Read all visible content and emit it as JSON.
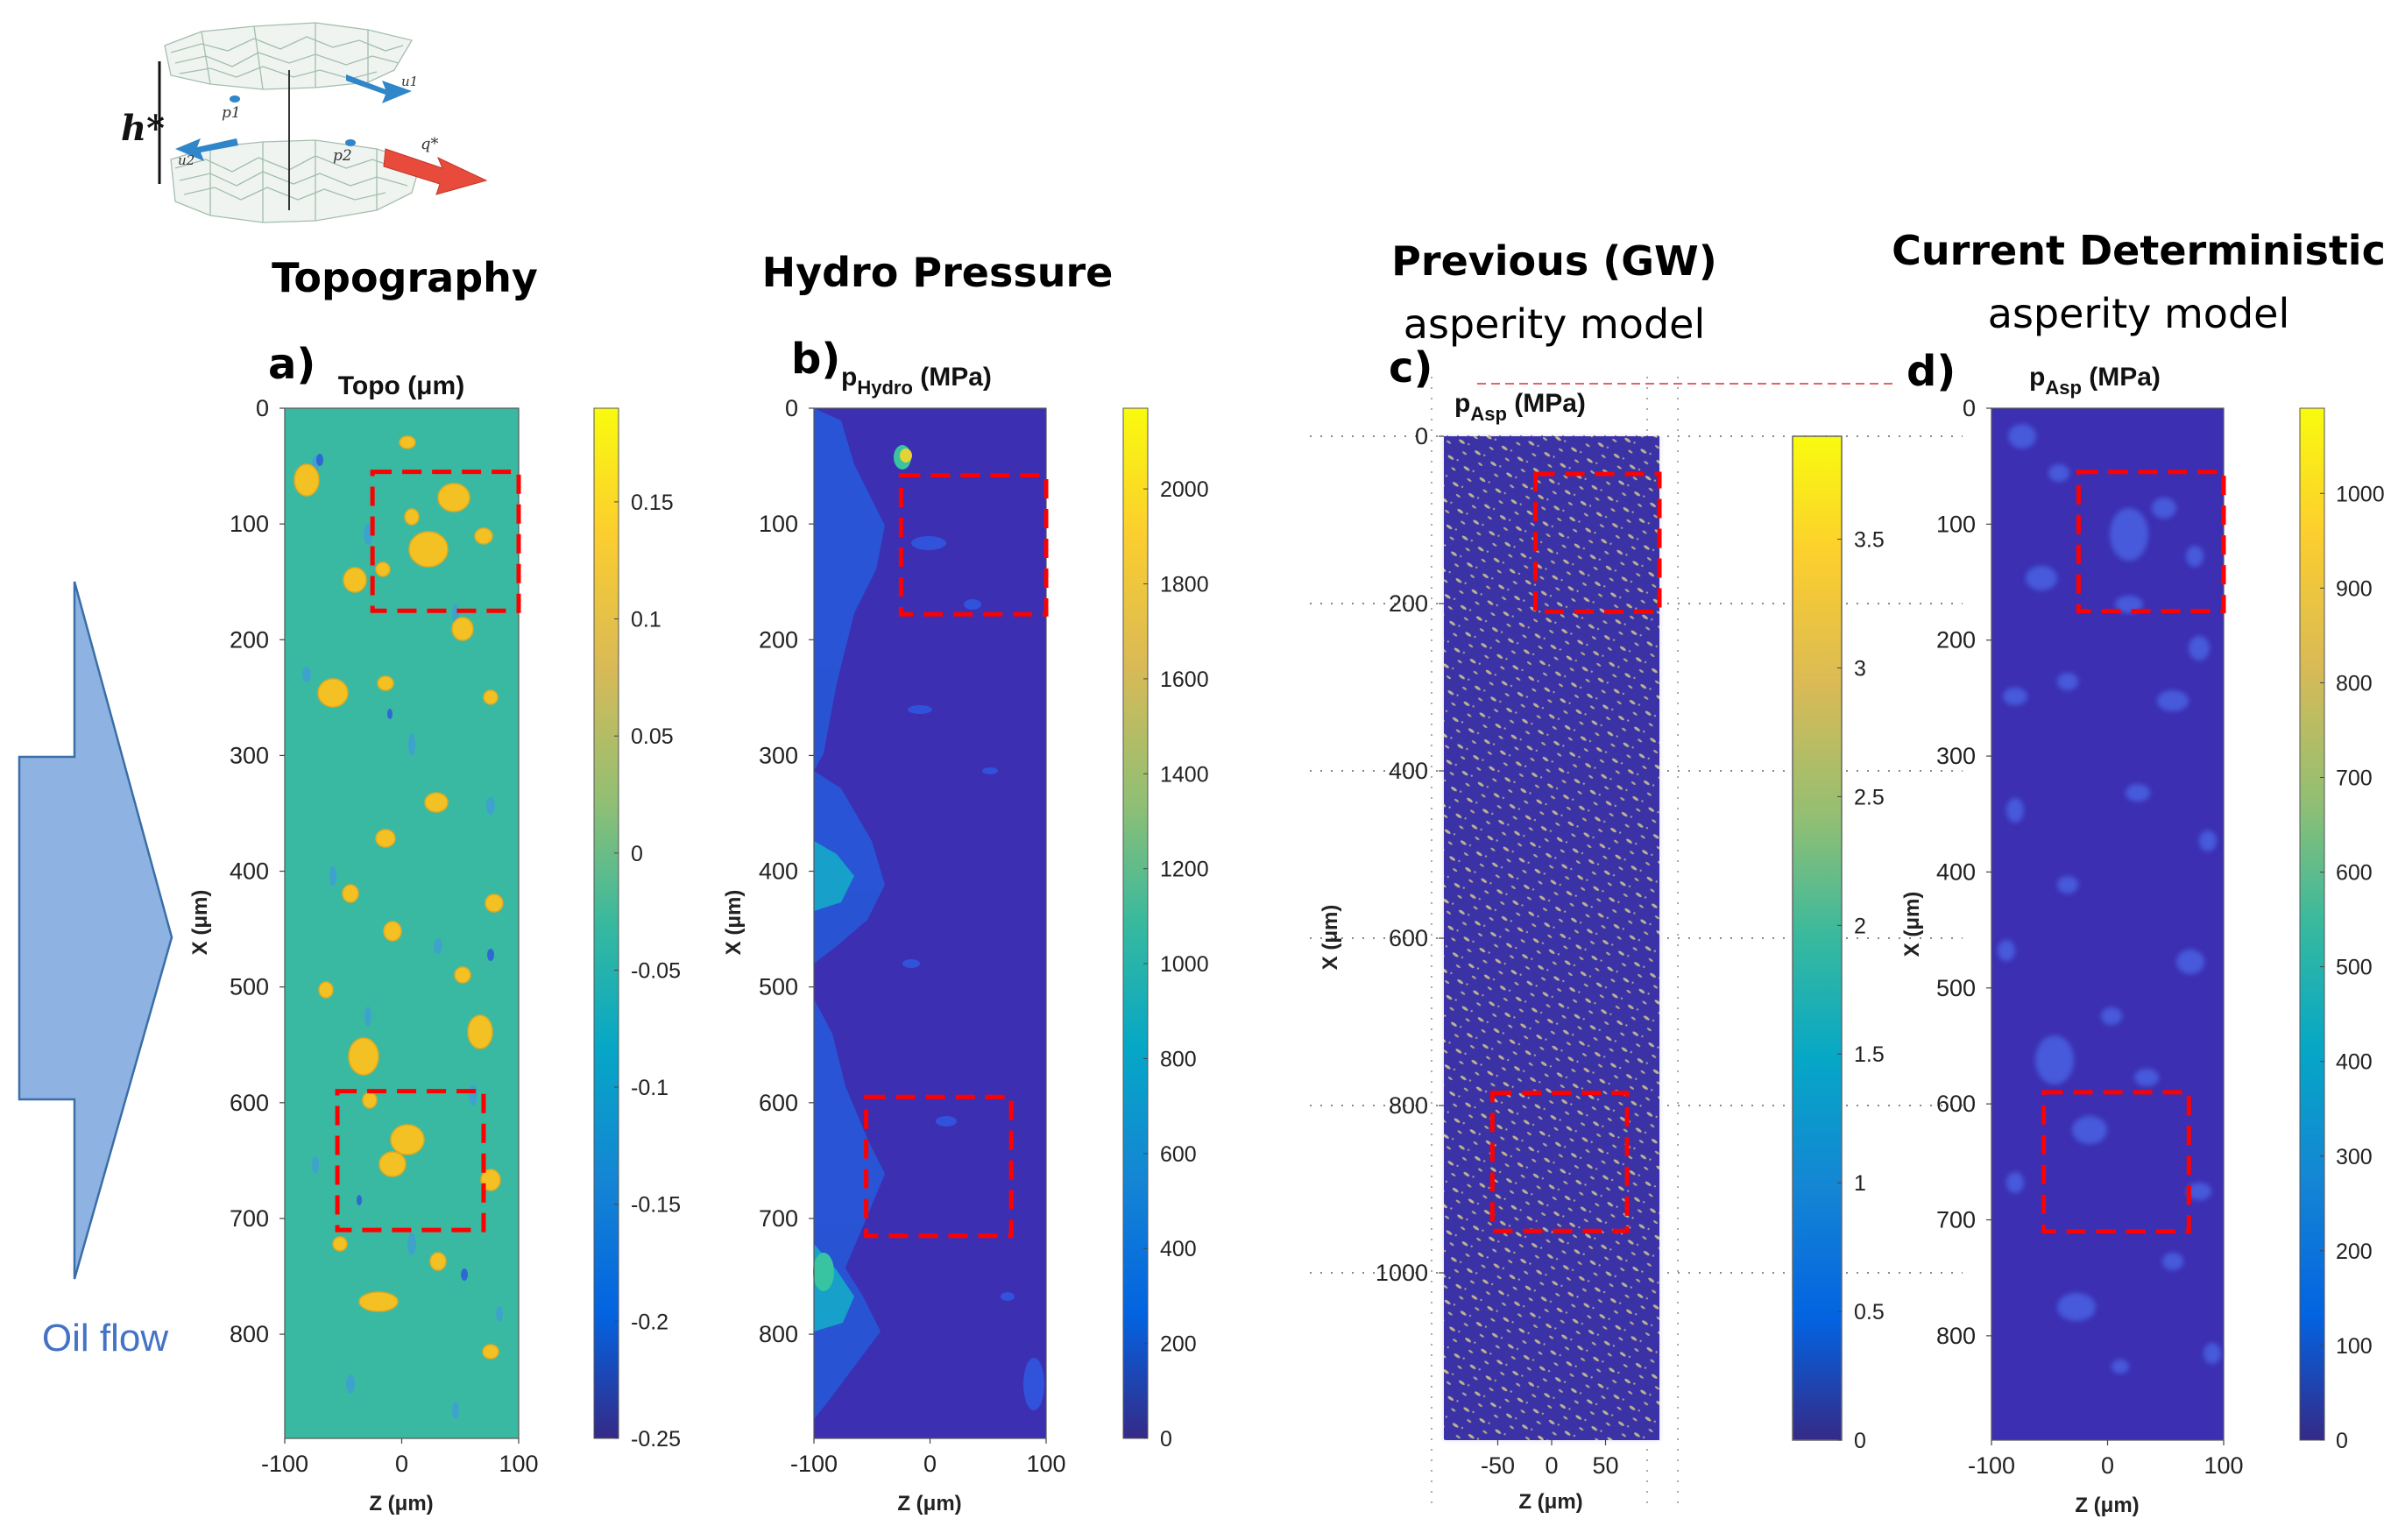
{
  "figure": {
    "arrow_label": "Oil flow",
    "arrow_color": "#7fa7db",
    "box_color": "#ff0000",
    "schematic_labels": [
      "h*",
      "p1",
      "p2",
      "u1",
      "u2",
      "q*"
    ]
  },
  "chart_data": [
    {
      "type": "heatmap",
      "panel_label": "a)",
      "heading": "Topography",
      "subheading": "",
      "title": "Topo (μm)",
      "xlabel": "Z (μm)",
      "ylabel": "X (μm)",
      "xlim": [
        -100,
        100
      ],
      "ylim": [
        0,
        890
      ],
      "xticks": [
        "-100",
        "0",
        "100"
      ],
      "yticks": [
        "0",
        "100",
        "200",
        "300",
        "400",
        "500",
        "600",
        "700",
        "800"
      ],
      "ytick_values": [
        0,
        100,
        200,
        300,
        400,
        500,
        600,
        700,
        800
      ],
      "colorbar_range": [
        -0.25,
        0.19
      ],
      "colorbar_ticks": [
        "0.15",
        "0.1",
        "0.05",
        "0",
        "-0.05",
        "-0.1",
        "-0.15",
        "-0.2",
        "-0.25"
      ],
      "colorbar_values": [
        0.15,
        0.1,
        0.05,
        0,
        -0.05,
        -0.1,
        -0.15,
        -0.2,
        -0.25
      ],
      "highlight_regions": [
        {
          "z": [
            -25,
            100
          ],
          "x": [
            55,
            175
          ]
        },
        {
          "z": [
            -55,
            70
          ],
          "x": [
            590,
            710
          ]
        }
      ]
    },
    {
      "type": "heatmap",
      "panel_label": "b)",
      "heading": "Hydro Pressure",
      "subheading": "",
      "title_main": "p",
      "title_sub": "Hydro",
      "title_unit": " (MPa)",
      "xlabel": "Z (μm)",
      "ylabel": "X (μm)",
      "xlim": [
        -100,
        100
      ],
      "ylim": [
        0,
        890
      ],
      "xticks": [
        "-100",
        "0",
        "100"
      ],
      "yticks": [
        "0",
        "100",
        "200",
        "300",
        "400",
        "500",
        "600",
        "700",
        "800"
      ],
      "ytick_values": [
        0,
        100,
        200,
        300,
        400,
        500,
        600,
        700,
        800
      ],
      "colorbar_range": [
        0,
        2170
      ],
      "colorbar_ticks": [
        "2000",
        "1800",
        "1600",
        "1400",
        "1200",
        "1000",
        "800",
        "600",
        "400",
        "200",
        "0"
      ],
      "colorbar_values": [
        2000,
        1800,
        1600,
        1400,
        1200,
        1000,
        800,
        600,
        400,
        200,
        0
      ],
      "highlight_regions": [
        {
          "z": [
            -25,
            100
          ],
          "x": [
            58,
            178
          ]
        },
        {
          "z": [
            -55,
            70
          ],
          "x": [
            595,
            715
          ]
        }
      ]
    },
    {
      "type": "heatmap",
      "panel_label": "c)",
      "heading": "Previous (GW)",
      "subheading": "asperity model",
      "title_main": "p",
      "title_sub": "Asp",
      "title_unit": " (MPa)",
      "xlabel": "Z (μm)",
      "ylabel": "X (μm)",
      "xlim": [
        -100,
        100
      ],
      "ylim": [
        0,
        1200
      ],
      "xticks": [
        "-50",
        "0",
        "50"
      ],
      "xtick_values": [
        -50,
        0,
        50
      ],
      "yticks": [
        "0",
        "200",
        "400",
        "600",
        "800",
        "1000"
      ],
      "ytick_values": [
        0,
        200,
        400,
        600,
        800,
        1000
      ],
      "colorbar_range": [
        0,
        3.9
      ],
      "colorbar_ticks": [
        "3.5",
        "3",
        "2.5",
        "2",
        "1.5",
        "1",
        "0.5",
        "0"
      ],
      "colorbar_values": [
        3.5,
        3,
        2.5,
        2,
        1.5,
        1,
        0.5,
        0
      ],
      "highlight_regions": [
        {
          "z": [
            -15,
            100
          ],
          "x": [
            45,
            210
          ]
        },
        {
          "z": [
            -55,
            70
          ],
          "x": [
            785,
            950
          ]
        }
      ]
    },
    {
      "type": "heatmap",
      "panel_label": "d)",
      "heading": "Current Deterministic",
      "subheading": "asperity model",
      "title_main": "p",
      "title_sub": "Asp",
      "title_unit": " (MPa)",
      "xlabel": "Z (μm)",
      "ylabel": "X (μm)",
      "xlim": [
        -100,
        100
      ],
      "ylim": [
        0,
        890
      ],
      "xticks": [
        "-100",
        "0",
        "100"
      ],
      "yticks": [
        "0",
        "100",
        "200",
        "300",
        "400",
        "500",
        "600",
        "700",
        "800"
      ],
      "ytick_values": [
        0,
        100,
        200,
        300,
        400,
        500,
        600,
        700,
        800
      ],
      "colorbar_range": [
        0,
        1090
      ],
      "colorbar_ticks": [
        "1000",
        "900",
        "800",
        "700",
        "600",
        "500",
        "400",
        "300",
        "200",
        "100",
        "0"
      ],
      "colorbar_values": [
        1000,
        900,
        800,
        700,
        600,
        500,
        400,
        300,
        200,
        100,
        0
      ],
      "highlight_regions": [
        {
          "z": [
            -25,
            100
          ],
          "x": [
            55,
            175
          ]
        },
        {
          "z": [
            -55,
            70
          ],
          "x": [
            590,
            710
          ]
        }
      ]
    }
  ]
}
